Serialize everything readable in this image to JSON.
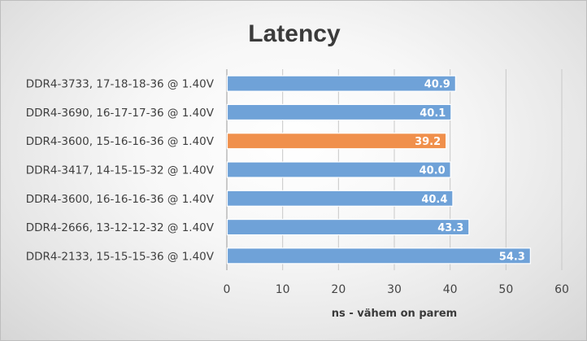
{
  "chart_data": {
    "type": "bar",
    "orientation": "horizontal",
    "title": "Latency",
    "xlabel": "ns - vähem on parem",
    "ylabel": "",
    "categories": [
      "DDR4-3733, 17-18-18-36 @ 1.40V",
      "DDR4-3690, 16-17-17-36 @ 1.40V",
      "DDR4-3600, 15-16-16-36 @ 1.40V",
      "DDR4-3417, 14-15-15-32 @ 1.40V",
      "DDR4-3600, 16-16-16-36 @ 1.40V",
      "DDR4-2666, 13-12-12-32 @ 1.40V",
      "DDR4-2133, 15-15-15-36 @ 1.40V"
    ],
    "values": [
      40.9,
      40.1,
      39.2,
      40.0,
      40.4,
      43.3,
      54.3
    ],
    "value_labels": [
      "40.9",
      "40.1",
      "39.2",
      "40.0",
      "40.4",
      "43.3",
      "54.3"
    ],
    "bar_colors": [
      "#6fa2d8",
      "#6fa2d8",
      "#f0904c",
      "#6fa2d8",
      "#6fa2d8",
      "#6fa2d8",
      "#6fa2d8"
    ],
    "xlim": [
      0,
      60
    ],
    "xticks": [
      0,
      10,
      20,
      30,
      40,
      50,
      60
    ],
    "xtick_labels": [
      "0",
      "10",
      "20",
      "30",
      "40",
      "50",
      "60"
    ],
    "grid": true,
    "legend": "none"
  }
}
